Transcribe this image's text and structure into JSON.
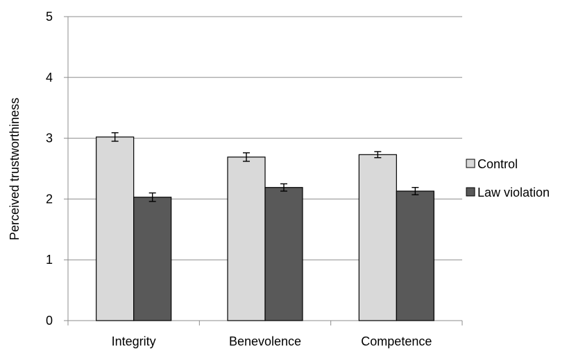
{
  "chart_data": {
    "type": "bar",
    "title": "",
    "xlabel": "",
    "ylabel": "Perceived trustworthiness",
    "ylim": [
      0,
      5
    ],
    "yticks": [
      "0",
      "1",
      "2",
      "3",
      "4",
      "5"
    ],
    "grid": true,
    "legend_position": "right",
    "categories": [
      "Integrity",
      "Benevolence",
      "Competence"
    ],
    "series": [
      {
        "name": "Control",
        "color": "#d9d9d9",
        "values": [
          3.02,
          2.69,
          2.73
        ],
        "errors": [
          0.07,
          0.07,
          0.05
        ]
      },
      {
        "name": "Law violation",
        "color": "#595959",
        "values": [
          2.03,
          2.19,
          2.13
        ],
        "errors": [
          0.07,
          0.06,
          0.06
        ]
      }
    ]
  }
}
